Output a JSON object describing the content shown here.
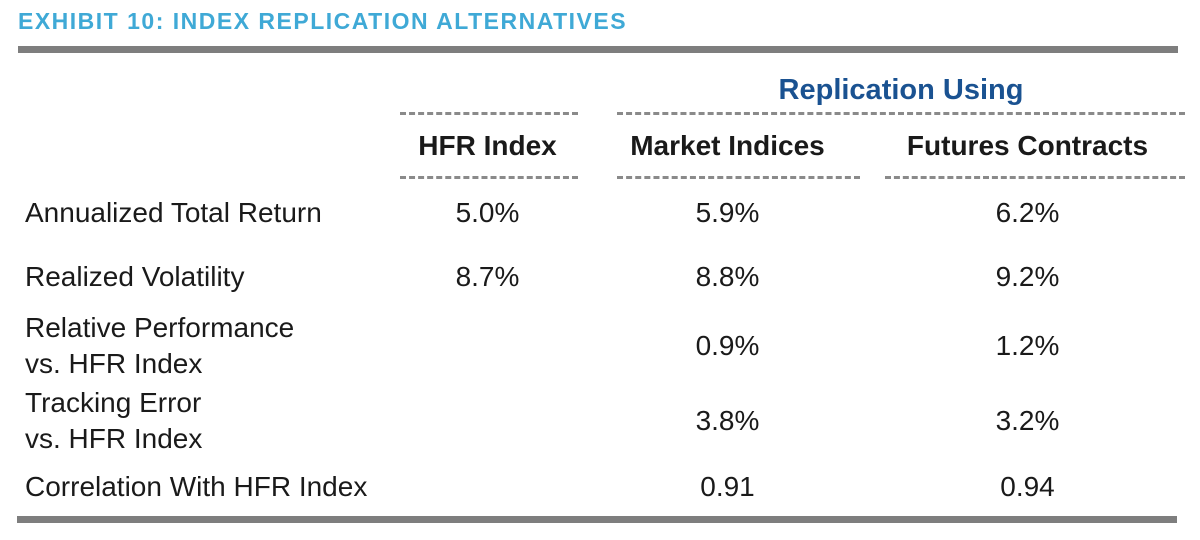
{
  "exhibit": {
    "title": "EXHIBIT 10: INDEX REPLICATION ALTERNATIVES"
  },
  "table": {
    "group_header": "Replication Using",
    "columns": [
      "HFR Index",
      "Market Indices",
      "Futures Contracts"
    ],
    "rows": [
      {
        "label": "Annualized Total Return",
        "hfr": "5.0%",
        "market": "5.9%",
        "futures": "6.2%"
      },
      {
        "label": "Realized Volatility",
        "hfr": "8.7%",
        "market": "8.8%",
        "futures": "9.2%"
      },
      {
        "label": "Relative Performance\nvs. HFR Index",
        "hfr": "",
        "market": "0.9%",
        "futures": "1.2%"
      },
      {
        "label": "Tracking Error\nvs. HFR Index",
        "hfr": "",
        "market": "3.8%",
        "futures": "3.2%"
      },
      {
        "label": "Correlation With HFR Index",
        "hfr": "",
        "market": "0.91",
        "futures": "0.94"
      }
    ]
  },
  "colors": {
    "title": "#3FA9D6",
    "group": "#1A5291",
    "rule": "#7E7E7E",
    "dash": "#8A8A8A",
    "text": "#1A1A1A",
    "bg": "#FFFFFF"
  }
}
